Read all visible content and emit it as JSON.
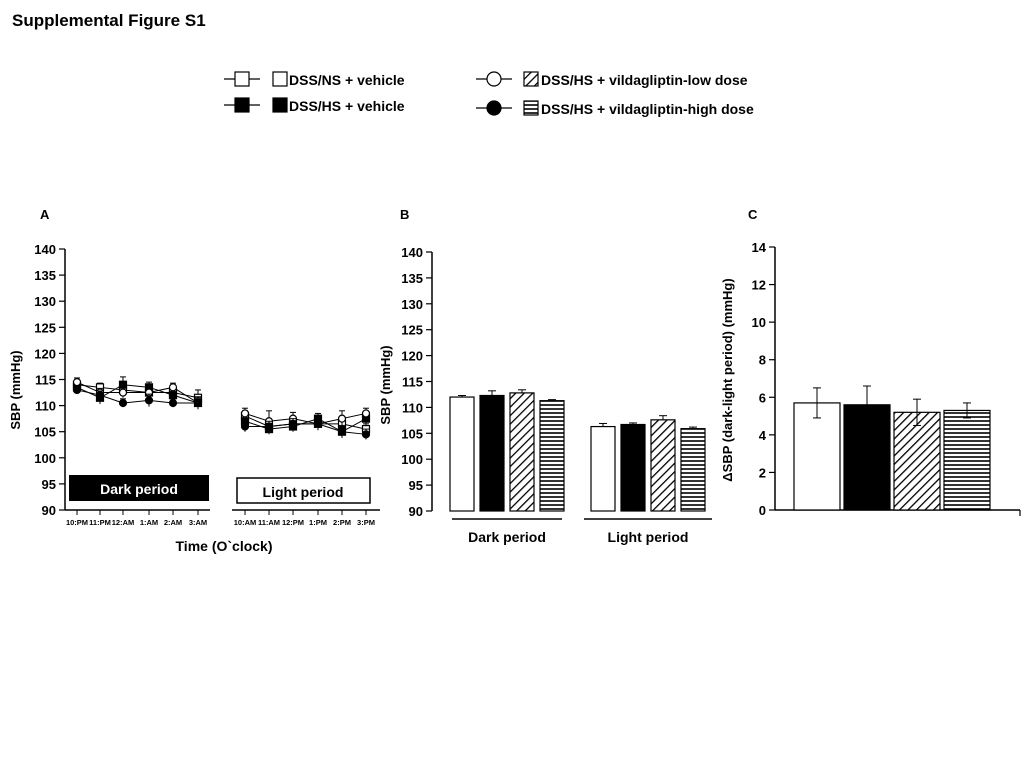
{
  "figure_title": "Supplemental Figure S1",
  "legend": [
    {
      "label": "DSS/NS + vehicle",
      "marker": "open-square",
      "bar_fill": "white"
    },
    {
      "label": "DSS/HS + vehicle",
      "marker": "filled-square",
      "bar_fill": "black"
    },
    {
      "label": "DSS/HS + vildagliptin-low dose",
      "marker": "open-circle",
      "bar_fill": "diagonal-hatch"
    },
    {
      "label": "DSS/HS + vildagliptin-high dose",
      "marker": "filled-circle",
      "bar_fill": "horizontal-lines"
    }
  ],
  "chart_data": [
    {
      "panel": "A",
      "type": "line",
      "ylabel": "SBP (mmHg)",
      "xlabel": "Time (O`clock)",
      "ylim": [
        90,
        140
      ],
      "yticks": [
        90,
        95,
        100,
        105,
        110,
        115,
        120,
        125,
        130,
        135,
        140
      ],
      "period_labels": [
        "Dark period",
        "Light period"
      ],
      "segments": [
        {
          "period": "Dark period",
          "x": [
            "10:PM",
            "11:PM",
            "12:AM",
            "1:AM",
            "2:AM",
            "3:AM"
          ],
          "series": [
            {
              "name": "DSS/NS + vehicle",
              "marker": "open-square",
              "values": [
                114.0,
                113.5,
                113.0,
                112.5,
                112.5,
                111.5
              ],
              "err": [
                0.8,
                0.8,
                1.0,
                0.8,
                0.8,
                1.5
              ]
            },
            {
              "name": "DSS/HS + vehicle",
              "marker": "filled-square",
              "values": [
                113.5,
                111.5,
                114.0,
                113.5,
                112.0,
                110.5
              ],
              "err": [
                1.0,
                1.2,
                1.5,
                1.0,
                1.0,
                1.0
              ]
            },
            {
              "name": "DSS/HS + vildagliptin-low dose",
              "marker": "open-circle",
              "values": [
                114.5,
                112.5,
                112.5,
                112.5,
                113.5,
                110.5
              ],
              "err": [
                0.8,
                0.8,
                1.0,
                0.8,
                0.8,
                1.2
              ]
            },
            {
              "name": "DSS/HS + vildagliptin-high dose",
              "marker": "filled-circle",
              "values": [
                113.0,
                112.0,
                110.5,
                111.0,
                110.5,
                110.5
              ],
              "err": [
                0.8,
                0.8,
                0.8,
                1.2,
                0.8,
                0.8
              ]
            }
          ]
        },
        {
          "period": "Light period",
          "x": [
            "10:AM",
            "11:AM",
            "12:PM",
            "1:PM",
            "2:PM",
            "3:PM"
          ],
          "series": [
            {
              "name": "DSS/NS + vehicle",
              "marker": "open-square",
              "values": [
                108.0,
                106.0,
                106.5,
                106.5,
                106.5,
                105.5
              ],
              "err": [
                1.0,
                1.0,
                1.0,
                1.2,
                1.0,
                1.0
              ]
            },
            {
              "name": "DSS/HS + vehicle",
              "marker": "filled-square",
              "values": [
                107.0,
                105.5,
                106.0,
                107.5,
                105.0,
                107.5
              ],
              "err": [
                1.0,
                1.0,
                1.0,
                1.0,
                1.2,
                1.0
              ]
            },
            {
              "name": "DSS/HS + vildagliptin-low dose",
              "marker": "open-circle",
              "values": [
                108.5,
                107.0,
                107.5,
                106.5,
                107.5,
                108.5
              ],
              "err": [
                1.0,
                2.0,
                1.2,
                1.2,
                1.5,
                1.0
              ]
            },
            {
              "name": "DSS/HS + vildagliptin-high dose",
              "marker": "filled-circle",
              "values": [
                106.0,
                106.0,
                106.5,
                106.5,
                105.0,
                104.5
              ],
              "err": [
                1.0,
                1.0,
                1.0,
                1.0,
                1.0,
                1.0
              ]
            }
          ]
        }
      ]
    },
    {
      "panel": "B",
      "type": "bar",
      "ylabel": "SBP (mmHg)",
      "ylim": [
        90,
        140
      ],
      "yticks": [
        90,
        95,
        100,
        105,
        110,
        115,
        120,
        125,
        130,
        135,
        140
      ],
      "categories": [
        "Dark   period",
        "Light period"
      ],
      "series": [
        {
          "name": "DSS/NS + vehicle",
          "fill": "white",
          "values": [
            112.0,
            106.3
          ],
          "err": [
            0.3,
            0.6
          ]
        },
        {
          "name": "DSS/HS + vehicle",
          "fill": "black",
          "values": [
            112.3,
            106.7
          ],
          "err": [
            0.9,
            0.3
          ]
        },
        {
          "name": "DSS/HS + vildagliptin-low dose",
          "fill": "diagonal-hatch",
          "values": [
            112.8,
            107.6
          ],
          "err": [
            0.6,
            0.8
          ]
        },
        {
          "name": "DSS/HS + vildagliptin-high dose",
          "fill": "horizontal-lines",
          "values": [
            111.3,
            105.9
          ],
          "err": [
            0.2,
            0.3
          ]
        }
      ]
    },
    {
      "panel": "C",
      "type": "bar",
      "ylabel": "ΔSBP (dark-light period) (mmHg)",
      "ylim": [
        0,
        14
      ],
      "yticks": [
        0,
        2,
        4,
        6,
        8,
        10,
        12,
        14
      ],
      "series": [
        {
          "name": "DSS/NS + vehicle",
          "fill": "white",
          "value": 5.7,
          "err": 0.8
        },
        {
          "name": "DSS/HS + vehicle",
          "fill": "black",
          "value": 5.6,
          "err": 1.0
        },
        {
          "name": "DSS/HS + vildagliptin-low dose",
          "fill": "diagonal-hatch",
          "value": 5.2,
          "err": 0.7
        },
        {
          "name": "DSS/HS + vildagliptin-high dose",
          "fill": "horizontal-lines",
          "value": 5.3,
          "err": 0.4
        }
      ]
    }
  ]
}
